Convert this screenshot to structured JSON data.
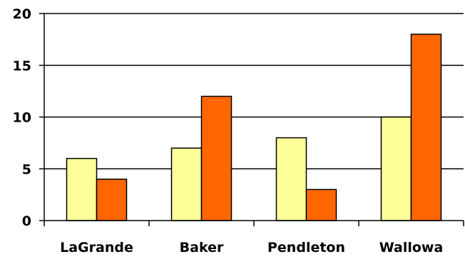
{
  "chart_data": {
    "type": "bar",
    "categories": [
      "LaGrande",
      "Baker",
      "Pendleton",
      "Wallowa"
    ],
    "series": [
      {
        "values": [
          6,
          7,
          8,
          10
        ],
        "color": "#FFFF99"
      },
      {
        "values": [
          4,
          12,
          3,
          18
        ],
        "color": "#FF6600"
      }
    ],
    "y_ticks": [
      "0",
      "5",
      "10",
      "15",
      "20"
    ],
    "ylim": [
      0,
      20
    ],
    "grid": true,
    "legend": "none"
  }
}
